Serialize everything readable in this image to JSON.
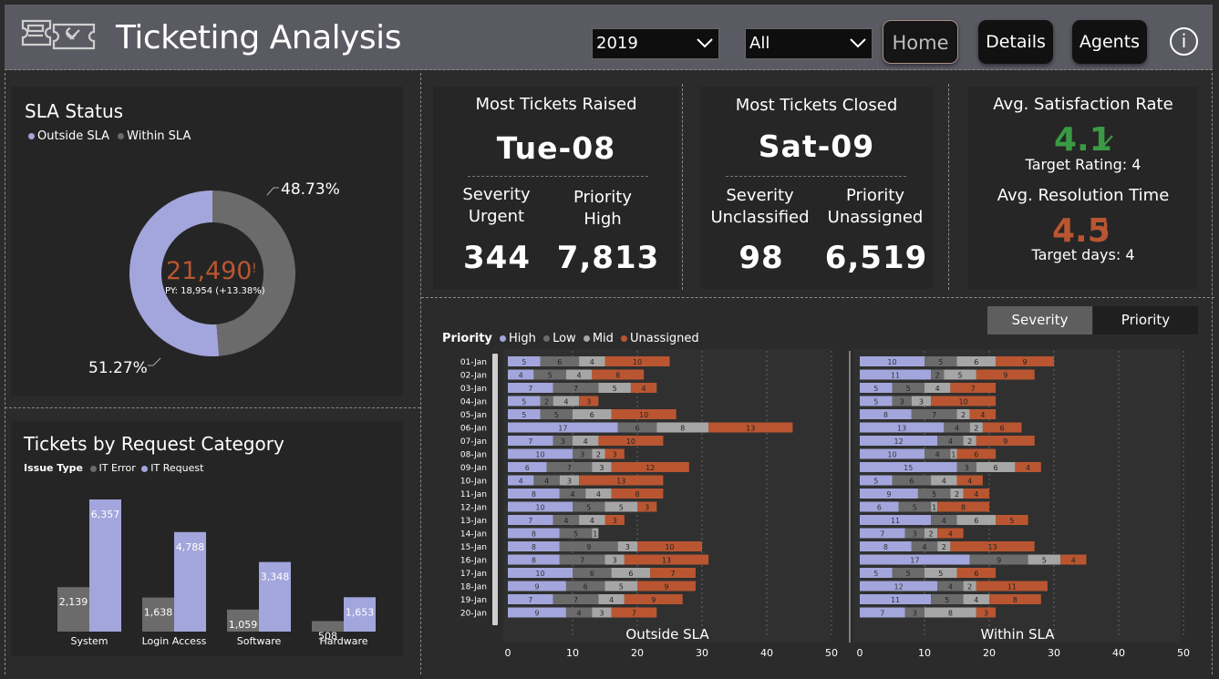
{
  "header": {
    "title": "Ticketing  Analysis",
    "year_select": "2019",
    "filter_select": "All",
    "nav": [
      "Home",
      "Details",
      "Agents"
    ],
    "info_label": "i"
  },
  "sla": {
    "title": "SLA Status",
    "legend": [
      {
        "label": "Outside SLA",
        "color": "#a3a6dc"
      },
      {
        "label": "Within SLA",
        "color": "#6b6b6b"
      }
    ],
    "total": "21,490",
    "total_flag": "!",
    "py_label": "PY: 18,954 (+13.38%)",
    "slices": [
      {
        "label": "Outside SLA",
        "value": 51.27,
        "text": "51.27%",
        "color": "#a3a6dc"
      },
      {
        "label": "Within SLA",
        "value": 48.73,
        "text": "48.73%",
        "color": "#6b6b6b"
      }
    ]
  },
  "category": {
    "title": "Tickets by Request Category",
    "legend_title": "Issue Type",
    "legend": [
      {
        "label": "IT Error",
        "color": "#6b6b6b"
      },
      {
        "label": "IT Request",
        "color": "#a3a6dc"
      }
    ],
    "chart_data": {
      "type": "bar",
      "categories": [
        "System",
        "Login Access",
        "Software",
        "Hardware"
      ],
      "series": [
        {
          "name": "IT Error",
          "values": [
            2139,
            1638,
            1059,
            508
          ],
          "labels": [
            "2,139",
            "1,638",
            "1,059",
            "508"
          ]
        },
        {
          "name": "IT Request",
          "values": [
            6357,
            4788,
            3348,
            1653
          ],
          "labels": [
            "6,357",
            "4,788",
            "3,348",
            "1,653"
          ]
        }
      ]
    }
  },
  "raised": {
    "title": "Most Tickets Raised",
    "day": "Tue-08",
    "sev_label": "Severity",
    "sev_value_label": "Urgent",
    "pri_label": "Priority",
    "pri_value_label": "High",
    "sev_count": "344",
    "pri_count": "7,813"
  },
  "closed": {
    "title": "Most Tickets Closed",
    "day": "Sat-09",
    "sev_label": "Severity",
    "sev_value_label": "Unclassified",
    "pri_label": "Priority",
    "pri_value_label": "Unassigned",
    "sev_count": "98",
    "pri_count": "6,519"
  },
  "satisfaction": {
    "title": "Avg. Satisfaction Rate",
    "value": "4.1",
    "target": "Target Rating: 4",
    "res_title": "Avg. Resolution Time",
    "res_value": "4.5",
    "res_flag": "!",
    "res_target": "Target days: 4"
  },
  "toggle": {
    "severity": "Severity",
    "priority": "Priority"
  },
  "daily": {
    "legend_title": "Priority",
    "legend": [
      {
        "label": "High",
        "color": "#a3a6dc"
      },
      {
        "label": "Low",
        "color": "#6b6b6b"
      },
      {
        "label": "Mid",
        "color": "#a6a6a6"
      },
      {
        "label": "Unassigned",
        "color": "#b95631"
      }
    ],
    "chart_data": [
      {
        "type": "bar",
        "title": "Outside SLA",
        "categories": [
          "01-Jan",
          "02-Jan",
          "03-Jan",
          "04-Jan",
          "05-Jan",
          "06-Jan",
          "07-Jan",
          "08-Jan",
          "09-Jan",
          "10-Jan",
          "11-Jan",
          "12-Jan",
          "13-Jan",
          "14-Jan",
          "15-Jan",
          "16-Jan",
          "17-Jan",
          "18-Jan",
          "19-Jan",
          "20-Jan"
        ],
        "series": [
          {
            "name": "High",
            "values": [
              5,
              4,
              7,
              5,
              5,
              17,
              7,
              10,
              6,
              4,
              8,
              10,
              7,
              8,
              8,
              8,
              10,
              9,
              7,
              9
            ]
          },
          {
            "name": "Low",
            "values": [
              6,
              5,
              7,
              2,
              5,
              6,
              3,
              3,
              7,
              4,
              4,
              5,
              4,
              5,
              9,
              7,
              6,
              6,
              7,
              4
            ]
          },
          {
            "name": "Mid",
            "values": [
              4,
              4,
              5,
              4,
              6,
              8,
              4,
              2,
              3,
              3,
              4,
              5,
              4,
              1,
              3,
              3,
              6,
              5,
              4,
              3
            ]
          },
          {
            "name": "Unassigned",
            "values": [
              10,
              8,
              4,
              3,
              10,
              13,
              10,
              3,
              12,
              13,
              8,
              3,
              3,
              0,
              10,
              13,
              7,
              9,
              9,
              7
            ]
          }
        ],
        "xlim": [
          0,
          50
        ],
        "xticks": [
          0,
          10,
          20,
          30,
          40,
          50
        ]
      },
      {
        "type": "bar",
        "title": "Within SLA",
        "categories": [
          "01-Jan",
          "02-Jan",
          "03-Jan",
          "04-Jan",
          "05-Jan",
          "06-Jan",
          "07-Jan",
          "08-Jan",
          "09-Jan",
          "10-Jan",
          "11-Jan",
          "12-Jan",
          "13-Jan",
          "14-Jan",
          "15-Jan",
          "16-Jan",
          "17-Jan",
          "18-Jan",
          "19-Jan",
          "20-Jan"
        ],
        "series": [
          {
            "name": "High",
            "values": [
              10,
              11,
              5,
              5,
              8,
              13,
              12,
              10,
              15,
              5,
              9,
              6,
              11,
              7,
              8,
              17,
              5,
              12,
              11,
              7
            ]
          },
          {
            "name": "Low",
            "values": [
              5,
              2,
              5,
              3,
              7,
              4,
              4,
              4,
              3,
              6,
              5,
              5,
              4,
              3,
              4,
              9,
              5,
              4,
              5,
              3
            ]
          },
          {
            "name": "Mid",
            "values": [
              6,
              5,
              4,
              3,
              2,
              2,
              2,
              1,
              6,
              4,
              2,
              1,
              6,
              2,
              2,
              5,
              5,
              2,
              4,
              8
            ]
          },
          {
            "name": "Unassigned",
            "values": [
              9,
              9,
              7,
              10,
              4,
              6,
              9,
              6,
              4,
              4,
              4,
              8,
              5,
              4,
              13,
              4,
              6,
              11,
              8,
              3
            ]
          }
        ],
        "xlim": [
          0,
          50
        ],
        "xticks": [
          0,
          10,
          20,
          30,
          40,
          50
        ]
      }
    ]
  }
}
